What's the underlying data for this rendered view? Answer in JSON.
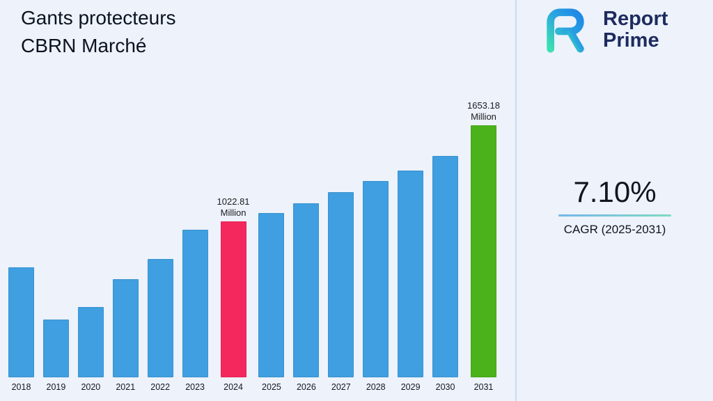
{
  "header": {
    "title": "Gants protecteurs\nCBRN Marché"
  },
  "logo": {
    "line1": "Report",
    "line2": "Prime"
  },
  "cagr": {
    "value": "7.10%",
    "label": "CAGR (2025-2031)"
  },
  "colors": {
    "background": "#edf2fb",
    "bar_blue": "#3f9fe0",
    "bar_pink": "#f5285e",
    "bar_green": "#4bb21c",
    "logo_navy": "#1d2b5f",
    "divider": "#c9ddf4"
  },
  "chart_data": {
    "type": "bar",
    "title": "Gants protecteurs CBRN Marché",
    "categories": [
      "2018",
      "2019",
      "2020",
      "2021",
      "2022",
      "2023",
      "2024",
      "2025",
      "2026",
      "2027",
      "2028",
      "2029",
      "2030",
      "2031"
    ],
    "values": [
      720,
      380,
      462,
      645,
      778,
      968,
      1022.81,
      1080,
      1142,
      1214,
      1290,
      1356,
      1454,
      1653.18
    ],
    "ylim": [
      0,
      1700
    ],
    "xlabel": "",
    "ylabel": "",
    "grid": false,
    "legend": false,
    "default_color": "#3f9fe0",
    "highlights": [
      {
        "index": 6,
        "color": "#f5285e",
        "label": "1022.81\nMillion"
      },
      {
        "index": 13,
        "color": "#4bb21c",
        "label": "1653.18\nMillion"
      }
    ]
  }
}
